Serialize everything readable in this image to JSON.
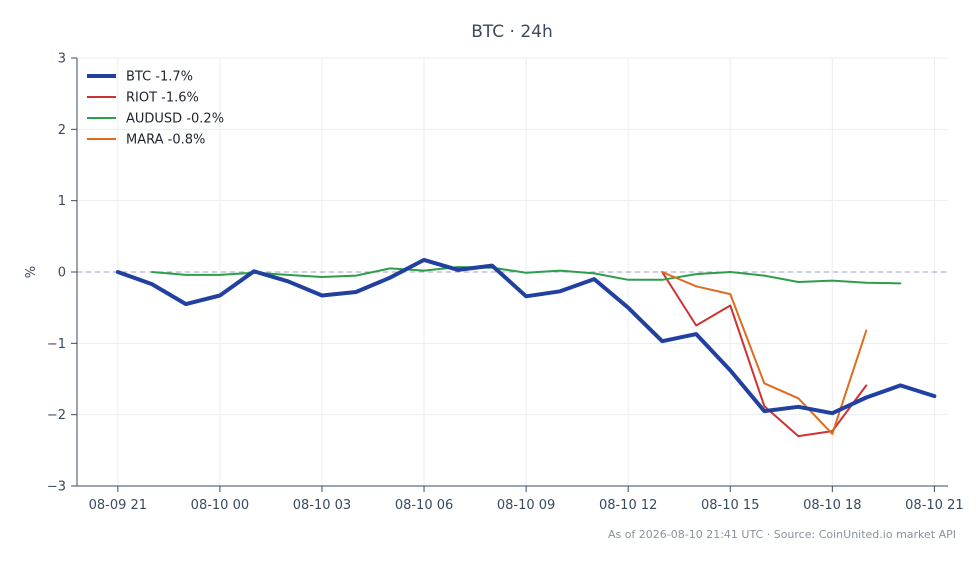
{
  "chart_data": {
    "type": "line",
    "title": "BTC · 24h",
    "ylabel": "%",
    "xlabel": "",
    "ylim": [
      -3,
      3
    ],
    "xlim": [
      -1.2,
      24.4
    ],
    "yticks": [
      3,
      2,
      1,
      0,
      -1,
      -2,
      -3
    ],
    "ytick_labels": [
      "3",
      "2",
      "1",
      "0",
      "−1",
      "−2",
      "−3"
    ],
    "xticks": [
      0,
      3,
      6,
      9,
      12,
      15,
      18,
      21,
      24
    ],
    "xtick_labels": [
      "08-09 21",
      "08-10 00",
      "08-10 03",
      "08-10 06",
      "08-10 09",
      "08-10 12",
      "08-10 15",
      "08-10 18",
      "08-10 21"
    ],
    "baseline": 0,
    "grid": true,
    "legend_position": "top-left",
    "series": [
      {
        "name": "BTC -1.7%",
        "color": "#2140a0",
        "width": 4,
        "x": [
          0,
          1,
          2,
          3,
          4,
          5,
          6,
          7,
          8,
          9,
          10,
          11,
          12,
          13,
          14,
          15,
          16,
          17,
          18,
          19,
          20,
          21,
          22,
          23,
          24
        ],
        "y": [
          0.0,
          -0.17,
          -0.45,
          -0.33,
          0.01,
          -0.13,
          -0.33,
          -0.28,
          -0.08,
          0.17,
          0.03,
          0.09,
          -0.34,
          -0.27,
          -0.1,
          -0.5,
          -0.97,
          -0.87,
          -1.38,
          -1.95,
          -1.89,
          -1.98,
          -1.76,
          -1.59,
          -1.74
        ]
      },
      {
        "name": "RIOT -1.6%",
        "color": "#cc3333",
        "width": 2,
        "x": [
          16,
          17,
          18,
          19,
          20,
          21,
          22
        ],
        "y": [
          0.0,
          -0.75,
          -0.47,
          -1.88,
          -2.3,
          -2.23,
          -1.59
        ]
      },
      {
        "name": "AUDUSD -0.2%",
        "color": "#2e9e4a",
        "width": 2,
        "x": [
          1,
          2,
          3,
          4,
          5,
          6,
          7,
          8,
          9,
          10,
          11,
          12,
          13,
          14,
          15,
          16,
          17,
          18,
          19,
          20,
          21,
          22,
          23
        ],
        "y": [
          0.0,
          -0.04,
          -0.04,
          -0.01,
          -0.04,
          -0.07,
          -0.05,
          0.05,
          0.02,
          0.07,
          0.06,
          -0.01,
          0.02,
          -0.02,
          -0.11,
          -0.11,
          -0.03,
          0.0,
          -0.05,
          -0.14,
          -0.12,
          -0.15,
          -0.16
        ]
      },
      {
        "name": "MARA -0.8%",
        "color": "#e26a1c",
        "width": 2,
        "x": [
          16,
          17,
          18,
          19,
          20,
          21,
          22
        ],
        "y": [
          0.0,
          -0.2,
          -0.31,
          -1.56,
          -1.77,
          -2.27,
          -0.82
        ]
      }
    ],
    "source_note": "As of 2026-08-10 21:41 UTC · Source: CoinUnited.io market API"
  },
  "colors": {
    "axis": "#3b4a5e",
    "grid": "#ebedf0",
    "baseline": "#9aa1c0"
  }
}
